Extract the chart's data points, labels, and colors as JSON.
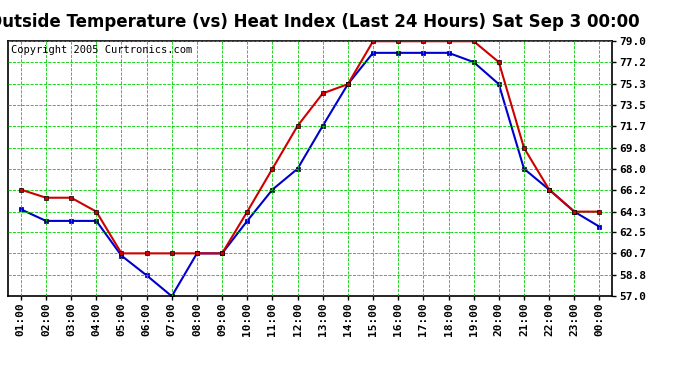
{
  "title": "Outside Temperature (vs) Heat Index (Last 24 Hours) Sat Sep 3 00:00",
  "copyright": "Copyright 2005 Curtronics.com",
  "x_labels": [
    "01:00",
    "02:00",
    "03:00",
    "04:00",
    "05:00",
    "06:00",
    "07:00",
    "08:00",
    "09:00",
    "10:00",
    "11:00",
    "12:00",
    "13:00",
    "14:00",
    "15:00",
    "16:00",
    "17:00",
    "18:00",
    "19:00",
    "20:00",
    "21:00",
    "22:00",
    "23:00",
    "00:00"
  ],
  "outside_temp": [
    64.5,
    63.5,
    63.5,
    63.5,
    60.5,
    58.8,
    57.0,
    60.7,
    60.7,
    63.5,
    66.2,
    68.0,
    71.7,
    75.3,
    78.0,
    78.0,
    78.0,
    78.0,
    77.2,
    75.3,
    68.0,
    66.2,
    64.3,
    63.0
  ],
  "heat_index": [
    66.2,
    65.5,
    65.5,
    64.3,
    60.7,
    60.7,
    60.7,
    60.7,
    60.7,
    64.3,
    68.0,
    71.7,
    74.5,
    75.3,
    79.0,
    79.0,
    79.0,
    79.0,
    79.0,
    77.2,
    69.8,
    66.2,
    64.3,
    64.3
  ],
  "outside_color": "#0000cc",
  "heat_index_color": "#cc0000",
  "bg_color": "#ffffff",
  "grid_color": "#00cc00",
  "border_color": "#000000",
  "ylim": [
    57.0,
    79.0
  ],
  "yticks": [
    57.0,
    58.8,
    60.7,
    62.5,
    64.3,
    66.2,
    68.0,
    69.8,
    71.7,
    73.5,
    75.3,
    77.2,
    79.0
  ],
  "title_fontsize": 12,
  "tick_fontsize": 8,
  "copyright_fontsize": 7.5
}
